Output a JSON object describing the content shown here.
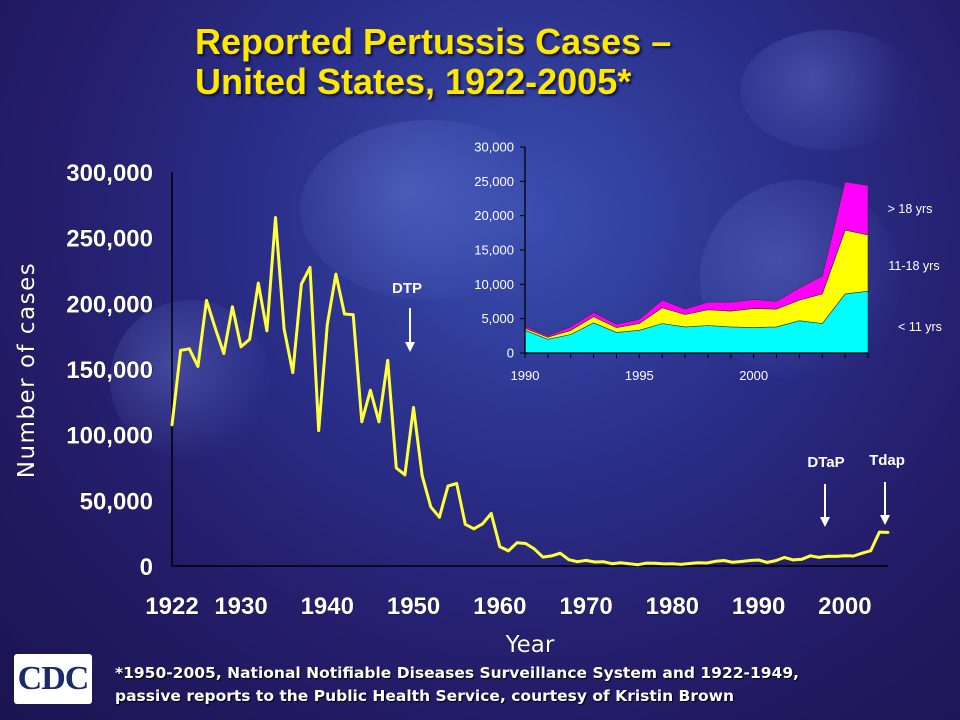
{
  "title_line1": "Reported Pertussis Cases –",
  "title_line2": "United States, 1922-2005*",
  "footnote_line1": "*1950-2005, National Notifiable Diseases Surveillance System and 1922-1949,",
  "footnote_line2": "passive reports to the Public Health Service, courtesy of Kristin Brown",
  "logo_text": "CDC",
  "colors": {
    "line": "#ffff3c",
    "background": "#2a2f8a",
    "under11": "#00ffff",
    "age11to18": "#ffff00",
    "over18": "#ff00ff"
  },
  "chart_data": [
    {
      "type": "line",
      "ylabel": "Number of cases",
      "xlabel": "Year",
      "xlim": [
        1922,
        2005
      ],
      "ylim": [
        0,
        300000
      ],
      "x_ticks": [
        "1922",
        "1930",
        "1940",
        "1950",
        "1960",
        "1970",
        "1980",
        "1990",
        "2000"
      ],
      "y_ticks": [
        "0",
        "50,000",
        "100,000",
        "150,000",
        "200,000",
        "250,000",
        "300,000"
      ],
      "annotations": [
        {
          "text": "DTP",
          "year": 1949
        },
        {
          "text": "DTaP",
          "year": 1997
        },
        {
          "text": "Tdap",
          "year": 2005
        }
      ],
      "series": [
        {
          "x": [
            1922,
            1923,
            1924,
            1925,
            1926,
            1927,
            1928,
            1929,
            1930,
            1931,
            1932,
            1933,
            1934,
            1935,
            1936,
            1937,
            1938,
            1939,
            1940,
            1941,
            1942,
            1943,
            1944,
            1945,
            1946,
            1947,
            1948,
            1949,
            1950,
            1951,
            1952,
            1953,
            1954,
            1955,
            1956,
            1957,
            1958,
            1959,
            1960,
            1961,
            1962,
            1963,
            1964,
            1965,
            1966,
            1967,
            1968,
            1969,
            1970,
            1971,
            1972,
            1973,
            1974,
            1975,
            1976,
            1977,
            1978,
            1979,
            1980,
            1981,
            1982,
            1983,
            1984,
            1985,
            1986,
            1987,
            1988,
            1989,
            1990,
            1991,
            1992,
            1993,
            1994,
            1995,
            1996,
            1997,
            1998,
            1999,
            2000,
            2001,
            2002,
            2003,
            2004,
            2005
          ],
          "values": [
            107473,
            164191,
            165418,
            152003,
            202210,
            181411,
            161799,
            197371,
            166914,
            172559,
            215343,
            179135,
            265269,
            180518,
            147237,
            214652,
            227319,
            103188,
            183866,
            222202,
            191890,
            191383,
            109873,
            133792,
            109860,
            156517,
            74715,
            69479,
            120718,
            68687,
            45030,
            37129,
            60886,
            62786,
            31732,
            28295,
            32148,
            40005,
            14809,
            11468,
            17749,
            17135,
            13005,
            6799,
            7717,
            9718,
            4810,
            3285,
            4249,
            3036,
            3287,
            1759,
            2402,
            1738,
            1010,
            2177,
            2063,
            1623,
            1730,
            1248,
            1895,
            2463,
            2276,
            3589,
            4195,
            2823,
            3450,
            4157,
            4570,
            2719,
            4083,
            6586,
            4617,
            5137,
            7796,
            6564,
            7405,
            7288,
            7867,
            7580,
            9771,
            11647,
            25827,
            25616
          ]
        }
      ]
    },
    {
      "type": "area",
      "xlim": [
        1990,
        2005
      ],
      "ylim": [
        0,
        30000
      ],
      "x_ticks": [
        "1990",
        "1995",
        "2000"
      ],
      "y_ticks": [
        "0",
        "5,000",
        "10,000",
        "15,000",
        "20,000",
        "25,000",
        "30,000"
      ],
      "x": [
        1990,
        1991,
        1992,
        1993,
        1994,
        1995,
        1996,
        1997,
        1998,
        1999,
        2000,
        2001,
        2002,
        2003,
        2004,
        2005
      ],
      "series": [
        {
          "name": "< 11 yrs",
          "values": [
            3300,
            2000,
            2700,
            4400,
            3000,
            3300,
            4300,
            3800,
            4000,
            3800,
            3700,
            3800,
            4700,
            4300,
            8600,
            9000
          ]
        },
        {
          "name": "11-18 yrs",
          "values": [
            300,
            300,
            600,
            900,
            700,
            1000,
            2300,
            1800,
            2300,
            2300,
            2800,
            2600,
            3000,
            4300,
            9300,
            8200
          ]
        },
        {
          "name": "> 18 yrs",
          "values": [
            300,
            200,
            500,
            600,
            500,
            600,
            1100,
            800,
            1100,
            1300,
            1300,
            1100,
            1800,
            2600,
            7000,
            7200
          ]
        }
      ]
    }
  ]
}
